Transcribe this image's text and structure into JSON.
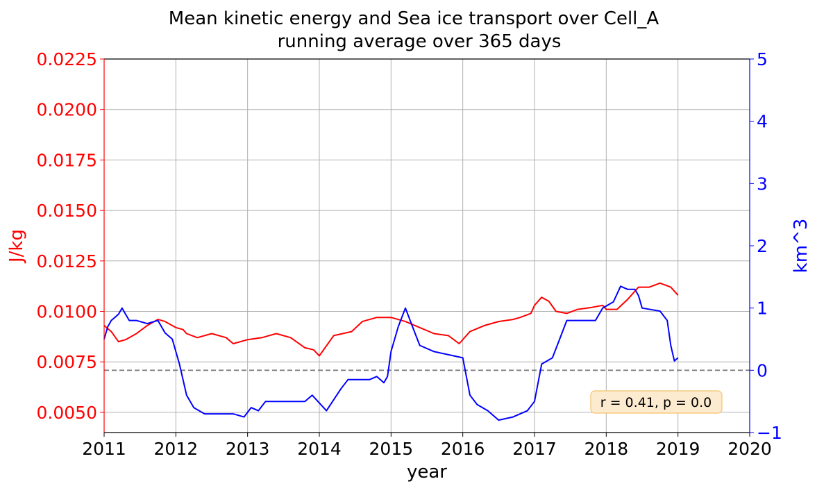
{
  "chart_data": {
    "type": "line",
    "title": "Mean kinetic energy and Sea ice transport over Cell_A",
    "subtitle": "running average over 365 days",
    "xlabel": "year",
    "ylabel_left": "J/kg",
    "ylabel_right": "km^3",
    "xlim": [
      2011,
      2020
    ],
    "x_ticks": [
      "2011",
      "2012",
      "2013",
      "2014",
      "2015",
      "2016",
      "2017",
      "2018",
      "2019",
      "2020"
    ],
    "ylim_left": [
      0.004,
      0.0225
    ],
    "y_ticks_left": [
      "0.0050",
      "0.0075",
      "0.0100",
      "0.0125",
      "0.0150",
      "0.0175",
      "0.0200",
      "0.0225"
    ],
    "ylim_right": [
      -1,
      5
    ],
    "y_ticks_right": [
      "−1",
      "0",
      "1",
      "2",
      "3",
      "4",
      "5"
    ],
    "grid": true,
    "left_axis_color": "#ff0000",
    "right_axis_color": "#0000ff",
    "zero_line": {
      "axis": "right",
      "y": 0,
      "color": "#808080",
      "style": "dashed"
    },
    "annotation": {
      "text": "r = 0.41, p = 0.0",
      "placement": "lower-right",
      "box_color": "#fdebd0",
      "edge_color": "#f5c26b"
    },
    "series": [
      {
        "axis": "left",
        "color": "#ff0000",
        "x": [
          2011.0,
          2011.1,
          2011.2,
          2011.3,
          2011.45,
          2011.6,
          2011.75,
          2011.85,
          2012.0,
          2012.1,
          2012.15,
          2012.3,
          2012.5,
          2012.7,
          2012.8,
          2013.0,
          2013.2,
          2013.4,
          2013.6,
          2013.8,
          2013.92,
          2014.0,
          2014.2,
          2014.45,
          2014.6,
          2014.8,
          2015.0,
          2015.2,
          2015.4,
          2015.6,
          2015.8,
          2015.95,
          2016.1,
          2016.3,
          2016.5,
          2016.7,
          2016.8,
          2016.95,
          2017.0,
          2017.1,
          2017.2,
          2017.3,
          2017.45,
          2017.6,
          2017.8,
          2017.95,
          2018.0,
          2018.15,
          2018.3,
          2018.45,
          2018.6,
          2018.75,
          2018.9,
          2019.0
        ],
        "y": [
          0.0093,
          0.009,
          0.0085,
          0.0086,
          0.0089,
          0.0093,
          0.0096,
          0.0095,
          0.0092,
          0.0091,
          0.0089,
          0.0087,
          0.0089,
          0.0087,
          0.0084,
          0.0086,
          0.0087,
          0.0089,
          0.0087,
          0.0082,
          0.0081,
          0.0078,
          0.0088,
          0.009,
          0.0095,
          0.0097,
          0.0097,
          0.0095,
          0.0092,
          0.0089,
          0.0088,
          0.0084,
          0.009,
          0.0093,
          0.0095,
          0.0096,
          0.0097,
          0.0099,
          0.0103,
          0.0107,
          0.0105,
          0.01,
          0.0099,
          0.0101,
          0.0102,
          0.0103,
          0.0101,
          0.0101,
          0.0106,
          0.0112,
          0.0112,
          0.0114,
          0.0112,
          0.0108
        ]
      },
      {
        "axis": "right",
        "color": "#0000ff",
        "x": [
          2011.0,
          2011.05,
          2011.1,
          2011.2,
          2011.25,
          2011.35,
          2011.45,
          2011.6,
          2011.75,
          2011.85,
          2011.95,
          2012.05,
          2012.15,
          2012.25,
          2012.4,
          2012.8,
          2012.95,
          2013.05,
          2013.15,
          2013.25,
          2013.5,
          2013.8,
          2013.9,
          2014.1,
          2014.3,
          2014.4,
          2014.5,
          2014.7,
          2014.8,
          2014.9,
          2014.95,
          2015.0,
          2015.1,
          2015.2,
          2015.3,
          2015.4,
          2015.6,
          2015.8,
          2016.0,
          2016.1,
          2016.2,
          2016.35,
          2016.5,
          2016.7,
          2016.9,
          2017.0,
          2017.1,
          2017.25,
          2017.35,
          2017.45,
          2017.7,
          2017.8,
          2017.85,
          2017.95,
          2018.1,
          2018.2,
          2018.3,
          2018.4,
          2018.45,
          2018.5,
          2018.75,
          2018.85,
          2018.9,
          2018.95,
          2019.0
        ],
        "y": [
          0.5,
          0.7,
          0.8,
          0.9,
          1.0,
          0.8,
          0.8,
          0.75,
          0.8,
          0.6,
          0.5,
          0.1,
          -0.4,
          -0.6,
          -0.7,
          -0.7,
          -0.75,
          -0.6,
          -0.65,
          -0.5,
          -0.5,
          -0.5,
          -0.4,
          -0.65,
          -0.3,
          -0.15,
          -0.15,
          -0.15,
          -0.1,
          -0.2,
          -0.1,
          0.3,
          0.7,
          1.0,
          0.7,
          0.4,
          0.3,
          0.25,
          0.2,
          -0.4,
          -0.55,
          -0.65,
          -0.8,
          -0.75,
          -0.65,
          -0.5,
          0.1,
          0.2,
          0.5,
          0.8,
          0.8,
          0.8,
          0.8,
          1.0,
          1.1,
          1.35,
          1.3,
          1.3,
          1.2,
          1.0,
          0.95,
          0.8,
          0.4,
          0.15,
          0.2
        ]
      }
    ]
  }
}
